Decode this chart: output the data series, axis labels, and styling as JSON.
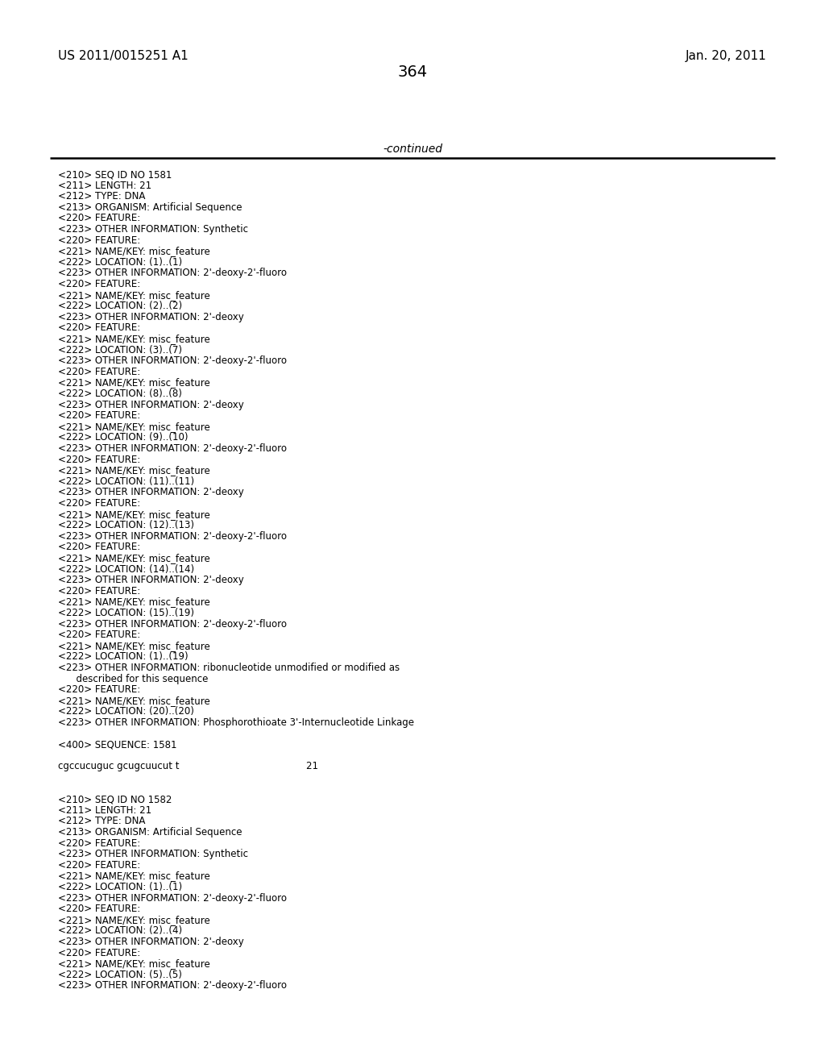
{
  "page_number": "364",
  "top_left": "US 2011/0015251 A1",
  "top_right": "Jan. 20, 2011",
  "continued_label": "-continued",
  "background_color": "#ffffff",
  "text_color": "#000000",
  "lines": [
    "<210> SEQ ID NO 1581",
    "<211> LENGTH: 21",
    "<212> TYPE: DNA",
    "<213> ORGANISM: Artificial Sequence",
    "<220> FEATURE:",
    "<223> OTHER INFORMATION: Synthetic",
    "<220> FEATURE:",
    "<221> NAME/KEY: misc_feature",
    "<222> LOCATION: (1)..(1)",
    "<223> OTHER INFORMATION: 2'-deoxy-2'-fluoro",
    "<220> FEATURE:",
    "<221> NAME/KEY: misc_feature",
    "<222> LOCATION: (2)..(2)",
    "<223> OTHER INFORMATION: 2'-deoxy",
    "<220> FEATURE:",
    "<221> NAME/KEY: misc_feature",
    "<222> LOCATION: (3)..(7)",
    "<223> OTHER INFORMATION: 2'-deoxy-2'-fluoro",
    "<220> FEATURE:",
    "<221> NAME/KEY: misc_feature",
    "<222> LOCATION: (8)..(8)",
    "<223> OTHER INFORMATION: 2'-deoxy",
    "<220> FEATURE:",
    "<221> NAME/KEY: misc_feature",
    "<222> LOCATION: (9)..(10)",
    "<223> OTHER INFORMATION: 2'-deoxy-2'-fluoro",
    "<220> FEATURE:",
    "<221> NAME/KEY: misc_feature",
    "<222> LOCATION: (11)..(11)",
    "<223> OTHER INFORMATION: 2'-deoxy",
    "<220> FEATURE:",
    "<221> NAME/KEY: misc_feature",
    "<222> LOCATION: (12)..(13)",
    "<223> OTHER INFORMATION: 2'-deoxy-2'-fluoro",
    "<220> FEATURE:",
    "<221> NAME/KEY: misc_feature",
    "<222> LOCATION: (14)..(14)",
    "<223> OTHER INFORMATION: 2'-deoxy",
    "<220> FEATURE:",
    "<221> NAME/KEY: misc_feature",
    "<222> LOCATION: (15)..(19)",
    "<223> OTHER INFORMATION: 2'-deoxy-2'-fluoro",
    "<220> FEATURE:",
    "<221> NAME/KEY: misc_feature",
    "<222> LOCATION: (1)..(19)",
    "<223> OTHER INFORMATION: ribonucleotide unmodified or modified as",
    "      described for this sequence",
    "<220> FEATURE:",
    "<221> NAME/KEY: misc_feature",
    "<222> LOCATION: (20)..(20)",
    "<223> OTHER INFORMATION: Phosphorothioate 3'-Internucleotide Linkage",
    "",
    "<400> SEQUENCE: 1581",
    "",
    "cgccucuguc gcugcuucut t                                          21",
    "",
    "",
    "<210> SEQ ID NO 1582",
    "<211> LENGTH: 21",
    "<212> TYPE: DNA",
    "<213> ORGANISM: Artificial Sequence",
    "<220> FEATURE:",
    "<223> OTHER INFORMATION: Synthetic",
    "<220> FEATURE:",
    "<221> NAME/KEY: misc_feature",
    "<222> LOCATION: (1)..(1)",
    "<223> OTHER INFORMATION: 2'-deoxy-2'-fluoro",
    "<220> FEATURE:",
    "<221> NAME/KEY: misc_feature",
    "<222> LOCATION: (2)..(4)",
    "<223> OTHER INFORMATION: 2'-deoxy",
    "<220> FEATURE:",
    "<221> NAME/KEY: misc_feature",
    "<222> LOCATION: (5)..(5)",
    "<223> OTHER INFORMATION: 2'-deoxy-2'-fluoro"
  ]
}
